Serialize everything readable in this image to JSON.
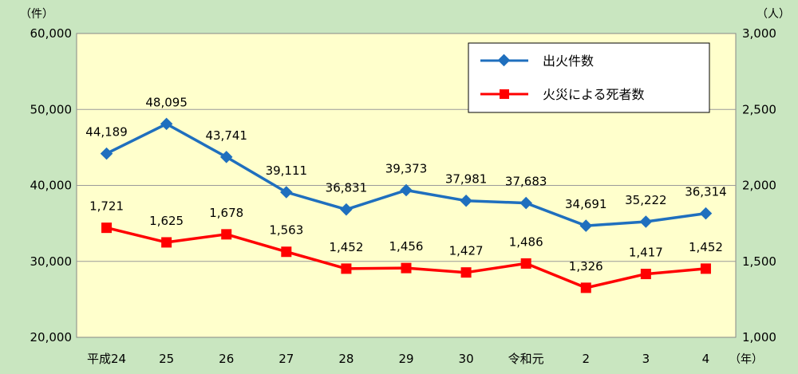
{
  "chart_data": {
    "type": "line",
    "categories": [
      "平成24",
      "25",
      "26",
      "27",
      "28",
      "29",
      "30",
      "令和元",
      "2",
      "3",
      "4"
    ],
    "series": [
      {
        "name": "出火件数",
        "axis": "left",
        "color": "#1f6fbe",
        "marker": "diamond",
        "values": [
          44189,
          48095,
          43741,
          39111,
          36831,
          39373,
          37981,
          37683,
          34691,
          35222,
          36314
        ],
        "labels": [
          "44,189",
          "48,095",
          "43,741",
          "39,111",
          "36,831",
          "39,373",
          "37,981",
          "37,683",
          "34,691",
          "35,222",
          "36,314"
        ]
      },
      {
        "name": "火災による死者数",
        "axis": "right",
        "color": "#ff0000",
        "marker": "square",
        "values": [
          1721,
          1625,
          1678,
          1563,
          1452,
          1456,
          1427,
          1486,
          1326,
          1417,
          1452
        ],
        "labels": [
          "1,721",
          "1,625",
          "1,678",
          "1,563",
          "1,452",
          "1,456",
          "1,427",
          "1,486",
          "1,326",
          "1,417",
          "1,452"
        ]
      }
    ],
    "y_left": {
      "unit": "（件）",
      "range": [
        20000,
        60000
      ],
      "ticks": [
        20000,
        30000,
        40000,
        50000,
        60000
      ],
      "tick_labels": [
        "20,000",
        "30,000",
        "40,000",
        "50,000",
        "60,000"
      ]
    },
    "y_right": {
      "unit": "（人）",
      "range": [
        1000,
        3000
      ],
      "ticks": [
        1000,
        1500,
        2000,
        2500,
        3000
      ],
      "tick_labels": [
        "1,000",
        "1,500",
        "2,000",
        "2,500",
        "3,000"
      ]
    },
    "x_unit": "（年）",
    "grid": true,
    "legend_position": "top-right",
    "colors": {
      "background": "#c9e6c0",
      "plot_area": "#ffffcc"
    }
  }
}
